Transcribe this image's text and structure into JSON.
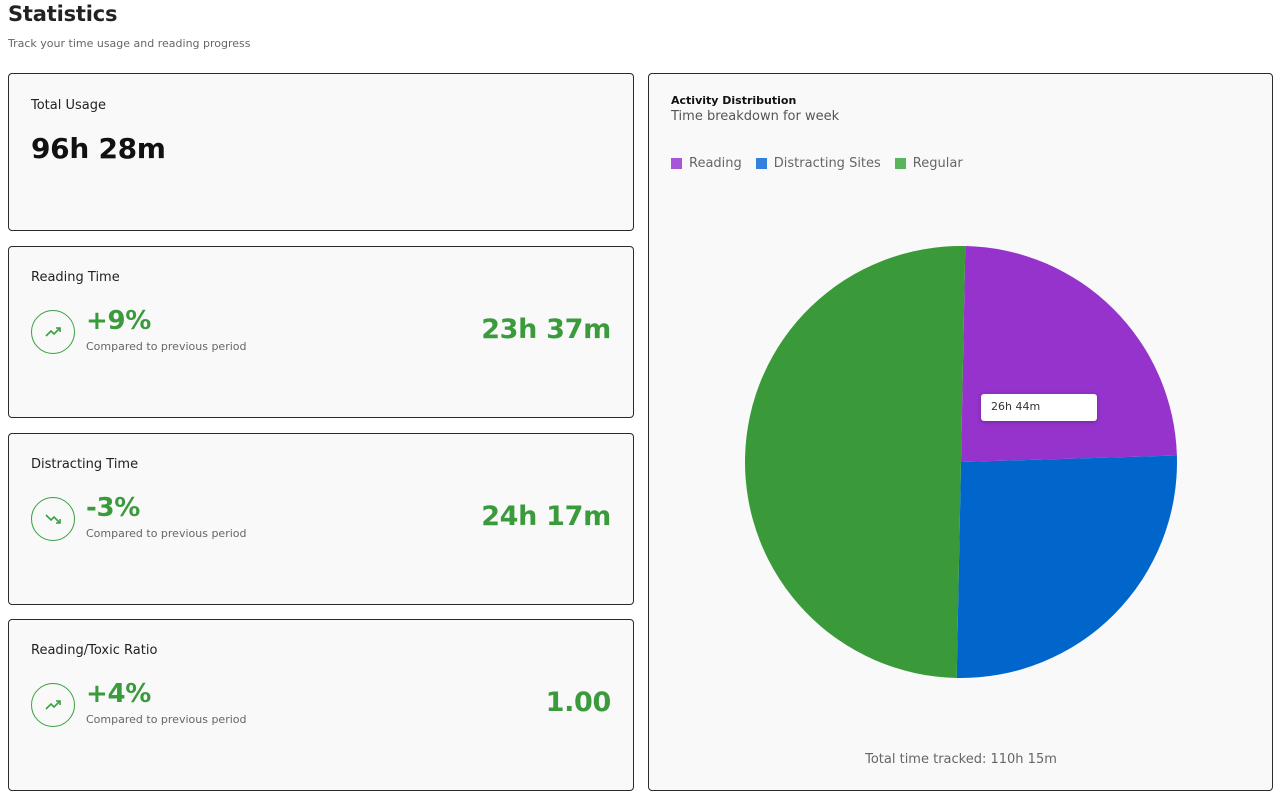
{
  "page": {
    "title": "Statistics",
    "subtitle": "Track your time usage and reading progress"
  },
  "total_usage": {
    "title": "Total Usage",
    "value": "96h 28m"
  },
  "reading_time": {
    "title": "Reading Time",
    "change": "+9%",
    "compare_text": "Compared to previous period",
    "value": "23h 37m",
    "trend": "trending-up-icon"
  },
  "distracting_time": {
    "title": "Distracting Time",
    "change": "-3%",
    "compare_text": "Compared to previous period",
    "value": "24h 17m",
    "trend": "trending-down-icon"
  },
  "ratio": {
    "title": "Reading/Toxic Ratio",
    "change": "+4%",
    "compare_text": "Compared to previous period",
    "value": "1.00",
    "trend": "trending-up-icon"
  },
  "colors": {
    "accent_green": "#3a9a3c",
    "reading": "#9533cc",
    "distracting": "#0066cc",
    "regular": "#3a9a3a"
  },
  "activity": {
    "title": "Activity Distribution",
    "subtitle": "Time breakdown for week",
    "tooltip": "26h 44m",
    "total_text": "Total time tracked: 110h 15m"
  },
  "chart_data": {
    "type": "pie",
    "categories": [
      "Reading",
      "Distracting Sites",
      "Regular"
    ],
    "values": [
      24.2,
      25.8,
      50.0
    ],
    "legend": "top-left"
  }
}
